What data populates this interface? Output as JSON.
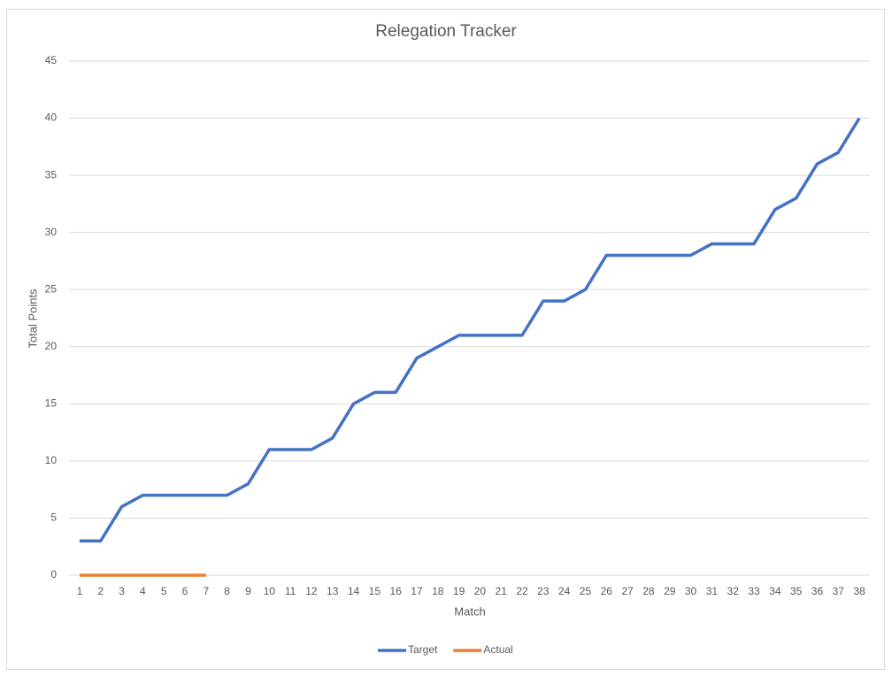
{
  "chart_data": {
    "type": "line",
    "title": "Relegation Tracker",
    "x_label": "Match",
    "y_label": "Total Points",
    "categories": [
      1,
      2,
      3,
      4,
      5,
      6,
      7,
      8,
      9,
      10,
      11,
      12,
      13,
      14,
      15,
      16,
      17,
      18,
      19,
      20,
      21,
      22,
      23,
      24,
      25,
      26,
      27,
      28,
      29,
      30,
      31,
      32,
      33,
      34,
      35,
      36,
      37,
      38
    ],
    "series": [
      {
        "name": "Target",
        "color": "#4472c4",
        "values": [
          3,
          3,
          6,
          7,
          7,
          7,
          7,
          7,
          8,
          11,
          11,
          11,
          12,
          15,
          16,
          16,
          19,
          20,
          21,
          21,
          21,
          21,
          24,
          24,
          25,
          28,
          28,
          28,
          28,
          28,
          29,
          29,
          29,
          32,
          33,
          36,
          37,
          40
        ]
      },
      {
        "name": "Actual",
        "color": "#ed7d31",
        "values": [
          0,
          0,
          0,
          0,
          0,
          0,
          0,
          null,
          null,
          null,
          null,
          null,
          null,
          null,
          null,
          null,
          null,
          null,
          null,
          null,
          null,
          null,
          null,
          null,
          null,
          null,
          null,
          null,
          null,
          null,
          null,
          null,
          null,
          null,
          null,
          null,
          null,
          null
        ]
      }
    ],
    "ylim": [
      0,
      45
    ],
    "yticks": [
      0,
      5,
      10,
      15,
      20,
      25,
      30,
      35,
      40,
      45
    ],
    "grid": true,
    "legend": "bottom"
  }
}
